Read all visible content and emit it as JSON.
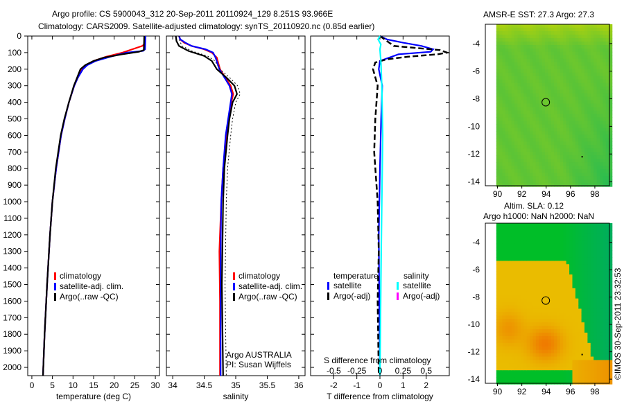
{
  "title_line1": "Argo profile: CS 5900043_312 20-Sep-2011 20110924_129 8.251S 93.966E",
  "title_line2": "Climatology: CARS2009. Satellite-adjusted climatology: synTS_20110920.nc (0.85d earlier)",
  "credit": "©IMOS 30-Sep-2011 23:32:53",
  "colors": {
    "climatology": "#ff0000",
    "satellite": "#0000ff",
    "argo": "#000000",
    "sal_satellite": "#00ffff",
    "sal_argo": "#ff00ff"
  },
  "chart_data": [
    {
      "type": "line",
      "name": "temperature",
      "xlabel": "temperature (deg C)",
      "xlim": [
        -1,
        31
      ],
      "ylim": [
        2050,
        0
      ],
      "xticks": [
        0,
        5,
        10,
        15,
        20,
        25,
        30
      ],
      "yticks": [
        0,
        100,
        200,
        300,
        400,
        500,
        600,
        700,
        800,
        900,
        1000,
        1100,
        1200,
        1300,
        1400,
        1500,
        1600,
        1700,
        1800,
        1900,
        2000
      ],
      "legend": [
        "climatology",
        "satellite-adj. clim.",
        "Argo(..raw -QC)"
      ],
      "series": [
        {
          "name": "climatology",
          "color": "#ff0000",
          "depth": [
            0,
            50,
            60,
            100,
            125,
            150,
            175,
            200,
            250,
            300,
            400,
            500,
            600,
            800,
            1000,
            1200,
            1500,
            1800,
            2050
          ],
          "values": [
            27.5,
            27.3,
            26.8,
            22,
            18,
            15,
            13.2,
            12.2,
            11.2,
            10.3,
            9,
            8,
            7.1,
            5.9,
            5,
            4.4,
            3.7,
            3.1,
            2.7
          ]
        },
        {
          "name": "satellite-adj. clim.",
          "color": "#0000ff",
          "depth": [
            0,
            80,
            90,
            100,
            125,
            150,
            175,
            200,
            250,
            300,
            400,
            500,
            600,
            800,
            1000,
            1200,
            1500,
            1800,
            2050
          ],
          "values": [
            27.6,
            27.5,
            27,
            23,
            19,
            15.5,
            13.5,
            12.4,
            11.2,
            10.3,
            9,
            8,
            7.1,
            5.9,
            5,
            4.4,
            3.7,
            3.1,
            2.7
          ]
        },
        {
          "name": "Argo(..raw -QC)",
          "color": "#000000",
          "depth": [
            0,
            85,
            95,
            110,
            130,
            150,
            175,
            200,
            250,
            300,
            400,
            500,
            600,
            800,
            1000,
            1200,
            1500,
            1800,
            2050
          ],
          "values": [
            27.3,
            27.2,
            26,
            22,
            17.5,
            15,
            13,
            11.8,
            11,
            10.2,
            9,
            7.9,
            7,
            5.8,
            5,
            4.4,
            3.7,
            3.1,
            2.7
          ]
        }
      ]
    },
    {
      "type": "line",
      "name": "salinity",
      "xlabel": "salinity",
      "xlim": [
        33.9,
        36.1
      ],
      "ylim": [
        2050,
        0
      ],
      "xticks": [
        34,
        34.5,
        35,
        35.5,
        36
      ],
      "legend": [
        "climatology",
        "satellite-adj. clim.",
        "Argo(..raw -QC)"
      ],
      "annotation": [
        "Argo AUSTRALIA",
        "PI: Susan Wijffels"
      ],
      "series": [
        {
          "name": "climatology",
          "color": "#ff0000",
          "depth": [
            0,
            20,
            40,
            60,
            80,
            100,
            130,
            200,
            300,
            350,
            400,
            600,
            800,
            1000,
            1300,
            1600,
            2050
          ],
          "values": [
            34.1,
            34.12,
            34.18,
            34.3,
            34.5,
            34.62,
            34.7,
            34.75,
            34.92,
            34.96,
            34.93,
            34.85,
            34.8,
            34.77,
            34.74,
            34.75,
            34.75
          ]
        },
        {
          "name": "satellite-adj. clim.",
          "color": "#0000ff",
          "depth": [
            0,
            20,
            40,
            60,
            80,
            100,
            130,
            200,
            300,
            350,
            400,
            600,
            800,
            1000,
            1300,
            1600,
            2050
          ],
          "values": [
            34.1,
            34.12,
            34.2,
            34.3,
            34.52,
            34.64,
            34.68,
            34.74,
            34.9,
            34.94,
            34.92,
            34.84,
            34.8,
            34.77,
            34.76,
            34.76,
            34.76
          ]
        },
        {
          "name": "Argo(..raw -QC)",
          "color": "#000000",
          "depth": [
            0,
            30,
            60,
            90,
            120,
            150,
            200,
            250,
            300,
            350,
            400,
            500,
            600,
            800,
            1000,
            1500,
            2050
          ],
          "values": [
            34.05,
            34.06,
            34.1,
            34.25,
            34.5,
            34.62,
            34.7,
            34.85,
            34.98,
            35.02,
            34.95,
            34.9,
            34.87,
            34.82,
            34.8,
            34.78,
            34.8
          ]
        }
      ]
    },
    {
      "type": "line",
      "name": "difference",
      "xlabel": "T difference from climatology",
      "xlabel2": "S difference from climatology",
      "xlim": [
        -3,
        3
      ],
      "x2lim": [
        -0.75,
        0.75
      ],
      "ylim": [
        2050,
        0
      ],
      "xticks": [
        -2,
        -1,
        0,
        1,
        2
      ],
      "x2ticks": [
        -0.5,
        -0.25,
        0,
        0.25,
        0.5
      ],
      "legend_headers": [
        "temperature",
        "salinity"
      ],
      "legend": [
        "satellite",
        "Argo(-adj)",
        "satellite",
        "Argo(-adj)"
      ],
      "series": [
        {
          "name": "T satellite",
          "color": "#0000ff",
          "depth": [
            0,
            20,
            40,
            60,
            80,
            95,
            110,
            150,
            200,
            300,
            500,
            800,
            1200,
            1600,
            2050
          ],
          "values": [
            0,
            0.3,
            1,
            1.8,
            2.3,
            2.2,
            0.8,
            0,
            -0.05,
            0.1,
            0.05,
            0,
            -0.05,
            -0.03,
            0
          ]
        },
        {
          "name": "T Argo(-adj)",
          "color": "#000000",
          "dash": true,
          "depth": [
            0,
            60,
            85,
            100,
            110,
            125,
            140,
            160,
            200,
            300,
            500,
            700,
            1000,
            1300,
            1600,
            2050
          ],
          "values": [
            0,
            0.6,
            2.6,
            2.9,
            2.5,
            1.2,
            0.3,
            -0.2,
            -0.3,
            -0.1,
            -0.2,
            -0.25,
            -0.1,
            -0.05,
            -0.1,
            -0.05
          ]
        },
        {
          "name": "S satellite",
          "color": "#00ffff",
          "depth": [
            0,
            20,
            50,
            80,
            150,
            300,
            600,
            1000,
            1500,
            2050
          ],
          "values": [
            0,
            -0.02,
            0.01,
            0.0,
            0.01,
            0.02,
            0.03,
            0.02,
            0.01,
            0.0
          ],
          "axis": "S"
        }
      ]
    },
    {
      "type": "heatmap",
      "name": "sst-map",
      "title": "AMSR-E SST: 27.3 Argo: 27.3",
      "xticks": [
        90,
        92,
        94,
        96,
        98
      ],
      "yticks": [
        -4,
        -6,
        -8,
        -10,
        -12,
        -14
      ],
      "xlim": [
        89,
        99.2
      ],
      "ylim": [
        -14.3,
        -2.6
      ],
      "marker": [
        93.966,
        -8.251
      ]
    },
    {
      "type": "heatmap",
      "name": "sla-map",
      "title": "Altim. SLA: 0.12",
      "title2": "Argo h1000: NaN h2000: NaN",
      "xticks": [
        90,
        92,
        94,
        96,
        98
      ],
      "yticks": [
        -4,
        -6,
        -8,
        -10,
        -12,
        -14
      ],
      "xlim": [
        89,
        99.2
      ],
      "ylim": [
        -14.3,
        -2.6
      ],
      "marker": [
        93.966,
        -8.251
      ]
    }
  ]
}
